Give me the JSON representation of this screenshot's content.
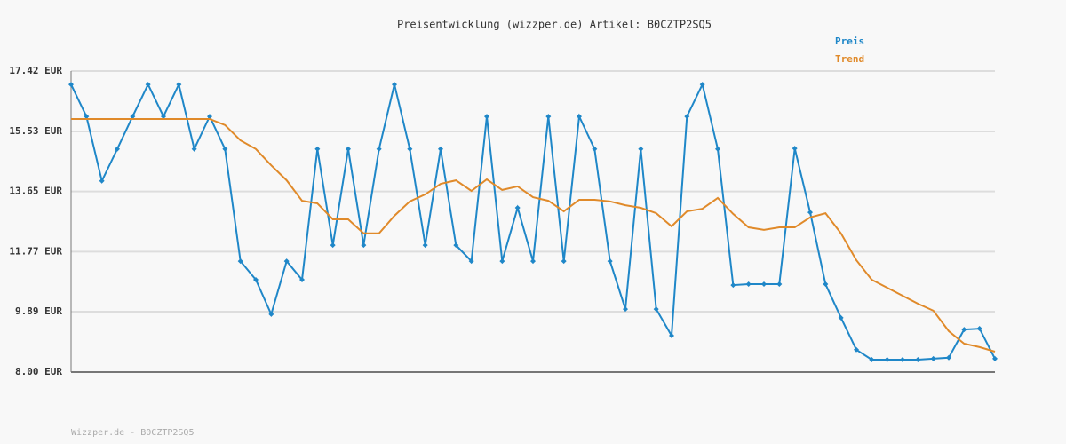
{
  "chart_data": {
    "type": "line",
    "title": "Preisentwicklung (wizzper.de) Artikel: B0CZTP2SQ5",
    "footer": "Wizzper.de - B0CZTP2SQ5",
    "ylim": [
      8.0,
      17.42
    ],
    "yticks": [
      {
        "value": 8.0,
        "label": "8.00 EUR"
      },
      {
        "value": 9.89,
        "label": "9.89 EUR"
      },
      {
        "value": 11.77,
        "label": "11.77 EUR"
      },
      {
        "value": 13.65,
        "label": "13.65 EUR"
      },
      {
        "value": 15.53,
        "label": "15.53 EUR"
      },
      {
        "value": 17.42,
        "label": "17.42 EUR"
      }
    ],
    "grid": true,
    "legend": "top-right",
    "series": [
      {
        "name": "Preis",
        "color": "#1f87c8",
        "markers": true,
        "values": [
          17.0,
          16.0,
          13.98,
          14.98,
          16.0,
          17.0,
          16.0,
          17.0,
          14.98,
          16.0,
          14.98,
          11.47,
          10.89,
          9.81,
          11.47,
          10.89,
          14.98,
          11.97,
          14.98,
          11.97,
          14.98,
          17.0,
          14.98,
          11.97,
          14.98,
          11.97,
          11.47,
          16.0,
          11.47,
          13.14,
          11.47,
          16.0,
          11.47,
          16.0,
          14.98,
          11.47,
          9.97,
          14.98,
          9.97,
          9.14,
          16.0,
          17.0,
          14.98,
          10.72,
          10.75,
          10.75,
          10.75,
          15.0,
          13.0,
          10.75,
          9.7,
          8.7,
          8.39,
          8.39,
          8.39,
          8.39,
          8.42,
          8.45,
          9.33,
          9.36,
          8.42
        ]
      },
      {
        "name": "Trend",
        "color": "#e08a2a",
        "markers": false,
        "values": [
          15.92,
          15.92,
          15.92,
          15.92,
          15.92,
          15.92,
          15.92,
          15.92,
          15.92,
          15.92,
          15.73,
          15.25,
          14.98,
          14.47,
          14.0,
          13.36,
          13.28,
          12.78,
          12.78,
          12.34,
          12.34,
          12.89,
          13.34,
          13.56,
          13.89,
          14.0,
          13.67,
          14.03,
          13.7,
          13.81,
          13.47,
          13.36,
          13.03,
          13.39,
          13.39,
          13.34,
          13.22,
          13.14,
          12.97,
          12.56,
          13.03,
          13.11,
          13.45,
          12.95,
          12.53,
          12.45,
          12.53,
          12.53,
          12.84,
          12.97,
          12.34,
          11.5,
          10.89,
          10.64,
          10.39,
          10.14,
          9.92,
          9.28,
          8.89,
          8.78,
          8.64
        ]
      }
    ]
  }
}
